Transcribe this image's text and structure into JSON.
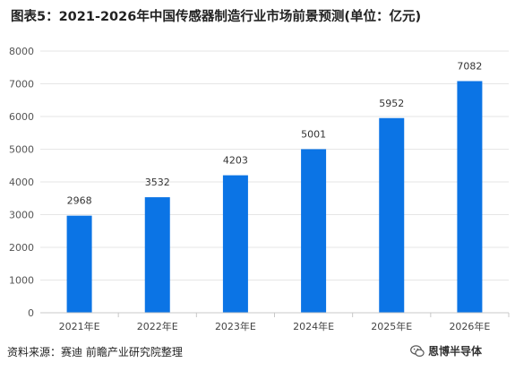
{
  "title": "图表5：2021-2026年中国传感器制造行业市场前景预测(单位：亿元)",
  "source": "资料来源：赛迪 前瞻产业研究院整理",
  "brand": {
    "icon": "wechat-icon",
    "label": "恩博半导体"
  },
  "colors": {
    "bar": "#0b74e5",
    "grid": "#e6e6e6",
    "axis": "#c8c8c8"
  },
  "chart_data": {
    "type": "bar",
    "title": "图表5：2021-2026年中国传感器制造行业市场前景预测(单位：亿元)",
    "xlabel": "",
    "ylabel": "",
    "categories": [
      "2021年E",
      "2022年E",
      "2023年E",
      "2024年E",
      "2025年E",
      "2026年E"
    ],
    "values": [
      2968,
      3532,
      4203,
      5001,
      5952,
      7082
    ],
    "ylim": [
      0,
      8000
    ],
    "yticks": [
      0,
      1000,
      2000,
      3000,
      4000,
      5000,
      6000,
      7000,
      8000
    ],
    "grid": true,
    "legend": "none"
  }
}
